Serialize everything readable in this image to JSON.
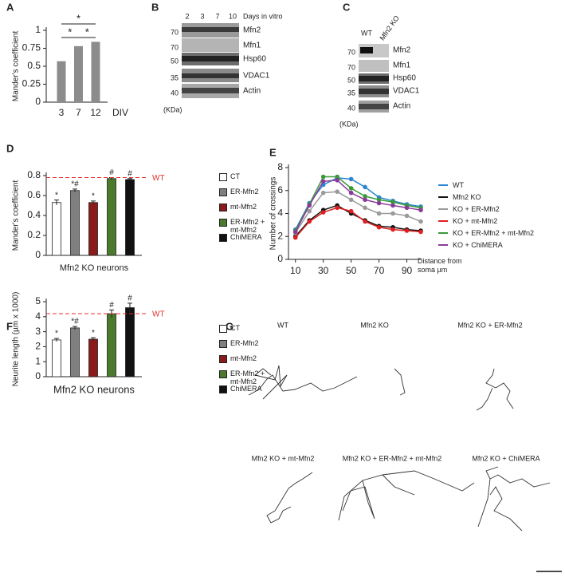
{
  "chart_data": [
    {
      "label": "A",
      "type": "bar",
      "ylabel": "Mander's coefficient",
      "xlabel": "DIV",
      "categories": [
        "3",
        "7",
        "12"
      ],
      "values": [
        0.57,
        0.78,
        0.84
      ],
      "color": "#8c8c8c",
      "ylim": [
        0,
        1
      ],
      "yticks": [
        0,
        0.25,
        0.5,
        0.75,
        1
      ],
      "annotations": [
        "*",
        "*",
        "*"
      ]
    },
    {
      "label": "D",
      "type": "bar",
      "ylabel": "Mander's coefficient",
      "xlabel": "Mfn2 KO neurons",
      "categories": [
        "CT",
        "ER-Mfn2",
        "mt-Mfn2",
        "ER-Mfn2 +\nmt-Mfn2",
        "ChiMERA"
      ],
      "values": [
        0.53,
        0.65,
        0.53,
        0.77,
        0.76
      ],
      "errors": [
        0.025,
        0.015,
        0.015,
        0.01,
        0.01
      ],
      "colors": [
        "#ffffff",
        "#808080",
        "#8b1a1a",
        "#4b7a2b",
        "#111111"
      ],
      "annotations": [
        "*",
        "*#",
        "*",
        "#",
        "#"
      ],
      "reference": {
        "value": 0.78,
        "label": "WT",
        "color": "#e03030"
      },
      "ylim": [
        0,
        0.8
      ],
      "yticks": [
        0,
        0.2,
        0.4,
        0.6,
        0.8
      ]
    },
    {
      "label": "E",
      "type": "line",
      "ylabel": "Number of crossings",
      "xlabel": "Distance from\nsoma µm",
      "x": [
        10,
        20,
        30,
        40,
        50,
        60,
        70,
        80,
        90,
        100
      ],
      "series": [
        {
          "name": "WT",
          "color": "#2a86d0",
          "values": [
            2.6,
            4.9,
            6.5,
            7.1,
            7.0,
            6.3,
            5.4,
            5.1,
            4.8,
            4.6
          ]
        },
        {
          "name": "Mfn2 KO",
          "color": "#111111",
          "values": [
            2.0,
            3.4,
            4.3,
            4.7,
            4.0,
            3.4,
            2.9,
            2.8,
            2.6,
            2.5
          ]
        },
        {
          "name": "KO + ER-Mfn2",
          "color": "#9a9a9a",
          "values": [
            2.3,
            4.2,
            5.8,
            5.9,
            5.2,
            4.5,
            4.0,
            4.0,
            3.8,
            3.3
          ]
        },
        {
          "name": "KO + mt-Mfn2",
          "color": "#e02020",
          "values": [
            1.9,
            3.3,
            4.1,
            4.5,
            4.2,
            3.3,
            2.8,
            2.6,
            2.5,
            2.4
          ]
        },
        {
          "name": "KO + ER-Mfn2 + mt-Mfn2",
          "color": "#3a9a3a",
          "values": [
            2.5,
            4.8,
            7.2,
            7.2,
            6.2,
            5.5,
            5.2,
            5.0,
            4.7,
            4.5
          ]
        },
        {
          "name": "KO + ChiMERA",
          "color": "#8a3a9a",
          "values": [
            2.4,
            4.7,
            6.8,
            6.9,
            5.8,
            5.2,
            4.9,
            4.7,
            4.5,
            4.3
          ]
        }
      ],
      "xlim": [
        5,
        100
      ],
      "xticks": [
        10,
        30,
        50,
        70,
        90
      ],
      "ylim": [
        0,
        8
      ],
      "yticks": [
        0,
        2,
        4,
        6,
        8
      ]
    },
    {
      "label": "F",
      "type": "bar",
      "ylabel": "Neurite length (µm x 1000)",
      "xlabel": "Mfn2 KO neurons",
      "categories": [
        "CT",
        "ER-Mfn2",
        "mt-Mfn2",
        "ER-Mfn2 +\nmt-Mfn2",
        "ChiMERA"
      ],
      "values": [
        2.45,
        3.25,
        2.5,
        4.2,
        4.6
      ],
      "errors": [
        0.1,
        0.1,
        0.1,
        0.25,
        0.3
      ],
      "colors": [
        "#ffffff",
        "#808080",
        "#8b1a1a",
        "#4b7a2b",
        "#111111"
      ],
      "annotations": [
        "*",
        "*#",
        "*",
        "#",
        "#"
      ],
      "reference": {
        "value": 4.2,
        "label": "WT",
        "color": "#e03030"
      },
      "ylim": [
        0,
        5
      ],
      "yticks": [
        0,
        1,
        2,
        3,
        4,
        5
      ]
    }
  ],
  "blot_b": {
    "label": "B",
    "lanes": [
      "2",
      "3",
      "7",
      "10"
    ],
    "lane_title": "Days in vitro",
    "proteins": [
      "Mfn2",
      "Mfn1",
      "Hsp60",
      "VDAC1",
      "Actin"
    ],
    "mw": [
      "70",
      "70",
      "50",
      "35",
      "40"
    ],
    "unit": "(KDa)"
  },
  "blot_c": {
    "label": "C",
    "lanes": [
      "WT",
      "Mfn2 KO"
    ],
    "proteins": [
      "Mfn2",
      "Mfn1",
      "Hsp60",
      "VDAC1",
      "Actin"
    ],
    "mw": [
      "70",
      "70",
      "50",
      "35",
      "40"
    ],
    "unit": "(KDa)"
  },
  "tracings": {
    "label": "G",
    "titles": [
      "WT",
      "Mfn2 KO",
      "Mfn2 KO + ER-Mfn2",
      "Mfn2 KO + mt-Mfn2",
      "Mfn2 KO + ER-Mfn2 + mt-Mfn2",
      "Mfn2 KO + ChiMERA"
    ]
  }
}
